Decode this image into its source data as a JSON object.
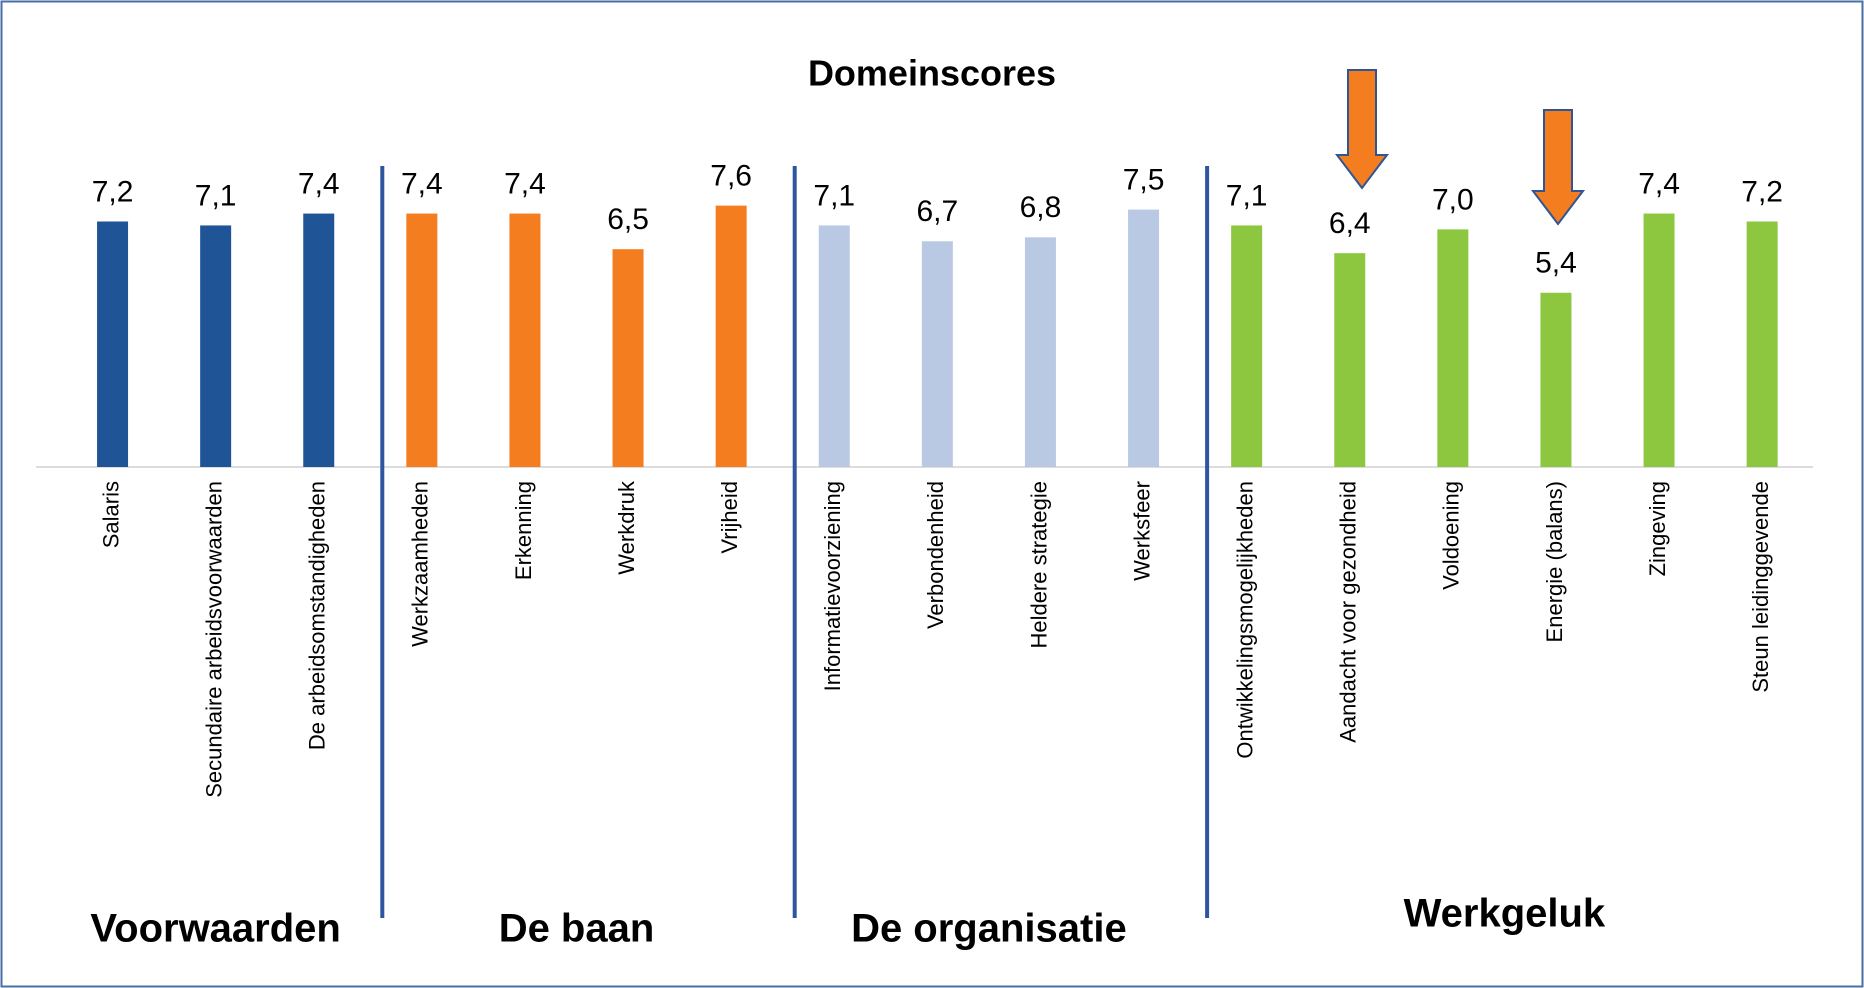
{
  "chart_data": {
    "type": "bar",
    "title": "Domeinscores",
    "ylim": [
      1,
      8.5
    ],
    "groups": [
      {
        "label": "Voorwaarden",
        "color": "#1f5597",
        "categories": [
          "Salaris",
          "Secundaire arbeidsvoorwaarden",
          "De arbeidsomstandigheden"
        ],
        "values": [
          7.2,
          7.1,
          7.4
        ],
        "value_labels": [
          "7,2",
          "7,1",
          "7,4"
        ]
      },
      {
        "label": "De baan",
        "color": "#f47d20",
        "categories": [
          "Werkzaamheden",
          "Erkenning",
          "Werkdruk",
          "Vrijheid"
        ],
        "values": [
          7.4,
          7.4,
          6.5,
          7.6
        ],
        "value_labels": [
          "7,4",
          "7,4",
          "6,5",
          "7,6"
        ]
      },
      {
        "label": "De organisatie",
        "color": "#b9c9e3",
        "categories": [
          "Informatievoorziening",
          "Verbondenheid",
          "Heldere strategie",
          "Werksfeer"
        ],
        "values": [
          7.1,
          6.7,
          6.8,
          7.5
        ],
        "value_labels": [
          "7,1",
          "6,7",
          "6,8",
          "7,5"
        ]
      },
      {
        "label": "Werkgeluk",
        "color": "#8dc63f",
        "categories": [
          "Ontwikkelingsmogelijkheden",
          "Aandacht voor gezondheid",
          "Voldoening",
          "Energie (balans)",
          "Zingeving",
          "Steun leidinggevende"
        ],
        "values": [
          7.1,
          6.4,
          7.0,
          5.4,
          7.4,
          7.2
        ],
        "value_labels": [
          "7,1",
          "6,4",
          "7,0",
          "5,4",
          "7,4",
          "7,2"
        ]
      }
    ]
  }
}
